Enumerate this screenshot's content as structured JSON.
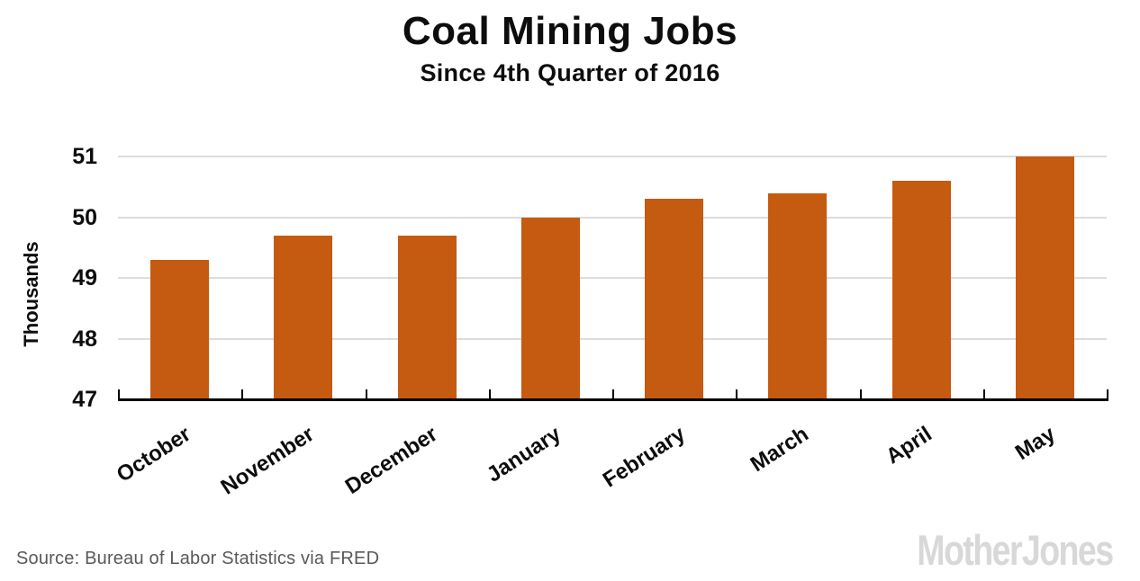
{
  "chart_data": {
    "type": "bar",
    "title": "Coal Mining Jobs",
    "subtitle": "Since 4th Quarter of 2016",
    "ylabel": "Thousands",
    "xlabel": "",
    "categories": [
      "October",
      "November",
      "December",
      "January",
      "February",
      "March",
      "April",
      "May"
    ],
    "values": [
      49.3,
      49.7,
      49.7,
      50.0,
      50.3,
      50.4,
      50.6,
      51.0
    ],
    "yticks": [
      47,
      48,
      49,
      50,
      51
    ],
    "ylim": [
      47,
      51
    ],
    "grid": true,
    "legend_position": "none",
    "bar_color": "#C55A11",
    "gridline_color": "#DCDCDC",
    "axis_color": "#000000",
    "text_color": "#0d0d0d",
    "source_color": "#58595B",
    "logo_color": "#D8D8D8",
    "source": "Source: Bureau of Labor Statistics via FRED",
    "logo": "Mother Jones"
  }
}
